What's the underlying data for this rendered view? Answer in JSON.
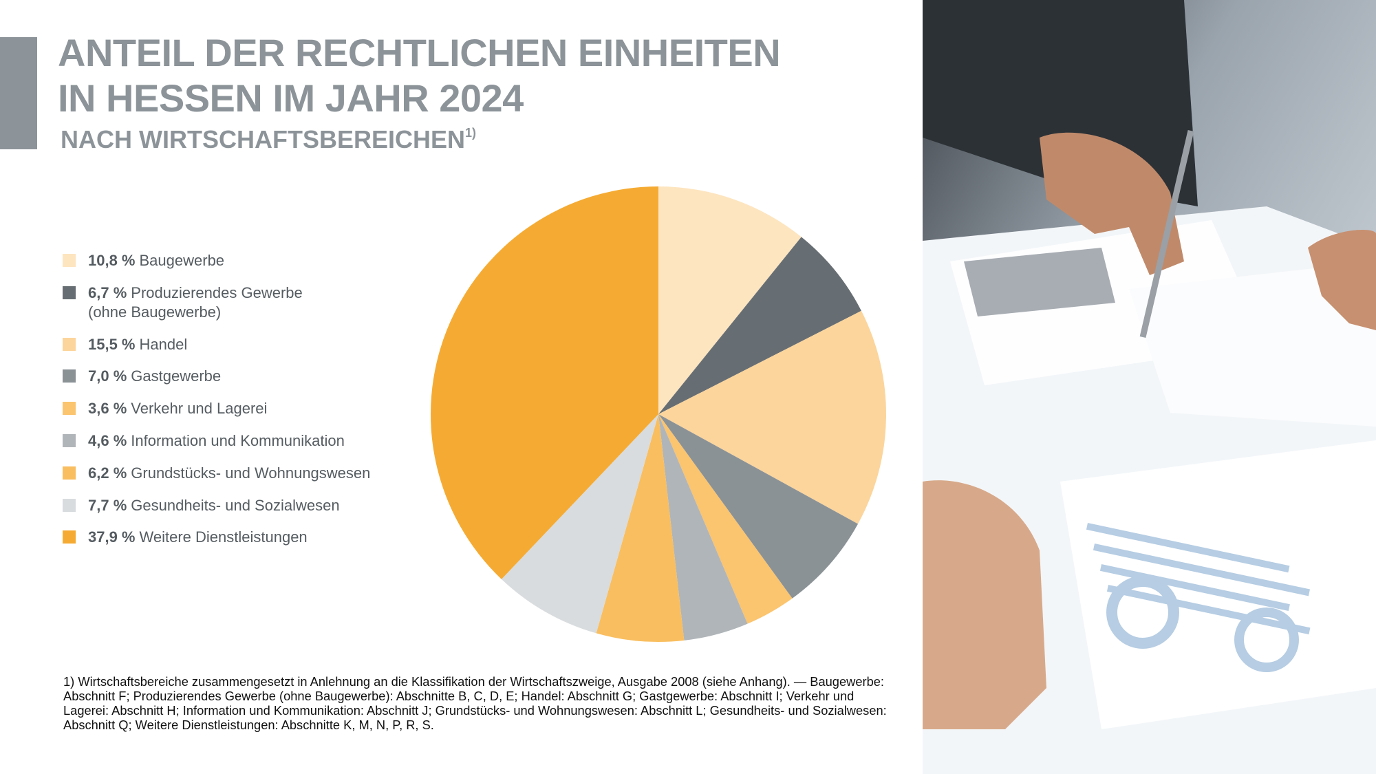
{
  "chart_data": {
    "type": "pie",
    "title": "ANTEIL DER RECHTLICHEN EINHEITEN IN HESSEN IM JAHR 2024",
    "subtitle": "NACH WIRTSCHAFTSBEREICHEN",
    "subtitle_note": "1)",
    "categories": [
      "Baugewerbe",
      "Produzierendes Gewerbe (ohne Baugewerbe)",
      "Handel",
      "Gastgewerbe",
      "Verkehr und Lagerei",
      "Information und Kommunikation",
      "Grundstücks- und Wohnungswesen",
      "Gesundheits- und Sozialwesen",
      "Weitere Dienstleistungen"
    ],
    "values": [
      10.8,
      6.7,
      15.5,
      7.0,
      3.6,
      4.6,
      6.2,
      7.7,
      37.9
    ],
    "value_labels": [
      "10,8 %",
      "6,7 %",
      "15,5 %",
      "7,0 %",
      "3,6 %",
      "4,6 %",
      "6,2 %",
      "7,7 %",
      "37,9 %"
    ],
    "colors": [
      "#fde5c0",
      "#676e73",
      "#fcd59c",
      "#8b9296",
      "#fbc46e",
      "#b0b5b9",
      "#f9be5f",
      "#d9dcde",
      "#f5ab33"
    ],
    "footnote": "1) Wirtschaftsbereiche zusammengesetzt in Anlehnung an die Klassifikation der Wirtschaftszweige, Ausgabe 2008 (siehe Anhang). — Baugewerbe: Abschnitt F; Produzierendes Gewerbe (ohne Baugewerbe): Abschnitte B, C, D, E; Handel: Abschnitt G; Gastgewerbe: Abschnitt I; Verkehr und Lagerei: Abschnitt H; Information und Kommunikation: Abschnitt J; Grundstücks- und Wohnungswesen: Abschnitt L; Gesundheits- und Sozialwesen: Abschnitt Q; Weitere Dienstleistungen: Abschnitte K, M, N, P, R, S."
  }
}
